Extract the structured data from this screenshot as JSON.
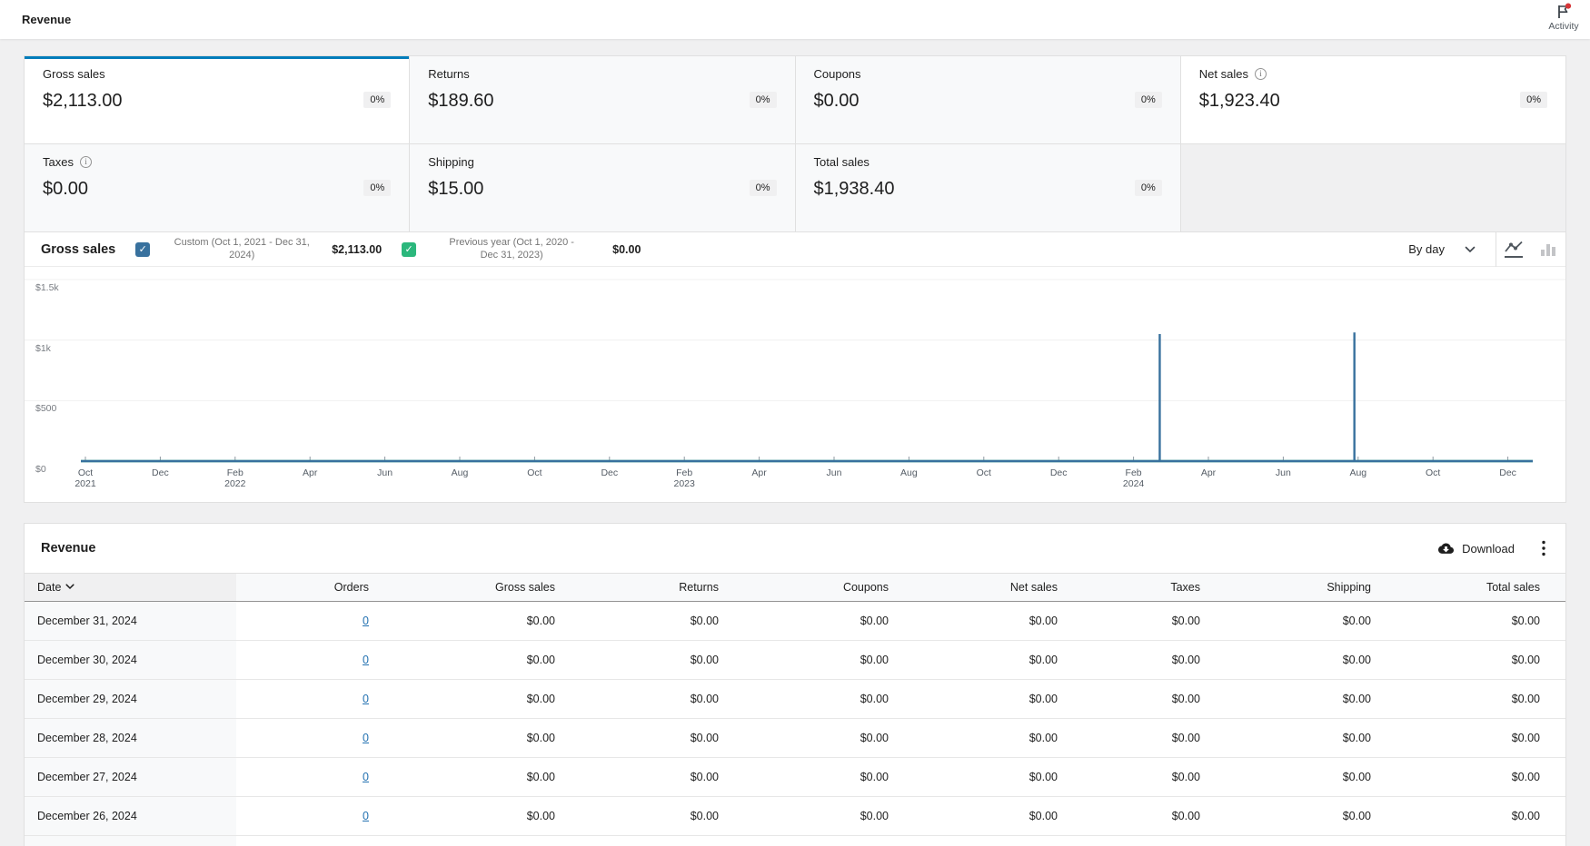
{
  "colors": {
    "accent_blue": "#007cba",
    "link_blue": "#2271b1",
    "series_current": "#38719e",
    "series_previous": "#2bb77c",
    "notification_red": "#d63638"
  },
  "topbar": {
    "title": "Revenue",
    "activity": {
      "label": "Activity",
      "icon": "flag-icon",
      "has_unread_dot": true
    }
  },
  "summary": {
    "tiles": [
      {
        "label": "Gross sales",
        "value": "$2,113.00",
        "delta": "0%",
        "selected": true,
        "info": false
      },
      {
        "label": "Returns",
        "value": "$189.60",
        "delta": "0%",
        "selected": false,
        "info": false
      },
      {
        "label": "Coupons",
        "value": "$0.00",
        "delta": "0%",
        "selected": false,
        "info": false
      },
      {
        "label": "Net sales",
        "value": "$1,923.40",
        "delta": "0%",
        "selected": false,
        "info": true,
        "highlighted": true
      },
      {
        "label": "Taxes",
        "value": "$0.00",
        "delta": "0%",
        "selected": false,
        "info": true
      },
      {
        "label": "Shipping",
        "value": "$15.00",
        "delta": "0%",
        "selected": false,
        "info": false
      },
      {
        "label": "Total sales",
        "value": "$1,938.40",
        "delta": "0%",
        "selected": false,
        "info": false
      }
    ]
  },
  "chart_panel": {
    "title": "Gross sales",
    "legend": [
      {
        "label": "Custom (Oct 1, 2021 - Dec 31, 2024)",
        "total": "$2,113.00",
        "checked": true,
        "checkbox_color": "#38719e"
      },
      {
        "label": "Previous year (Oct 1, 2020 - Dec 31, 2023)",
        "total": "$0.00",
        "checked": true,
        "checkbox_color": "#2bb77c"
      }
    ],
    "interval_selector": {
      "value": "By day"
    },
    "chart_type": {
      "selected": "line",
      "options": [
        "line",
        "bar"
      ]
    }
  },
  "chart_data": {
    "type": "line",
    "title": "Gross sales",
    "interval": "day",
    "x_range": [
      "Oct 1, 2021",
      "Dec 31, 2024"
    ],
    "ylim": [
      0,
      1500
    ],
    "grid": true,
    "legend_position": "top",
    "y_ticks": [
      {
        "label": "$1.5k",
        "value": 1500
      },
      {
        "label": "$1k",
        "value": 1000
      },
      {
        "label": "$500",
        "value": 500
      },
      {
        "label": "$0",
        "value": 0
      }
    ],
    "x_ticks": [
      {
        "m": "Oct",
        "y": "2021"
      },
      {
        "m": "Dec"
      },
      {
        "m": "Feb",
        "y": "2022"
      },
      {
        "m": "Apr"
      },
      {
        "m": "Jun"
      },
      {
        "m": "Aug"
      },
      {
        "m": "Oct"
      },
      {
        "m": "Dec"
      },
      {
        "m": "Feb",
        "y": "2023"
      },
      {
        "m": "Apr"
      },
      {
        "m": "Jun"
      },
      {
        "m": "Aug"
      },
      {
        "m": "Oct"
      },
      {
        "m": "Dec"
      },
      {
        "m": "Feb",
        "y": "2024"
      },
      {
        "m": "Apr"
      },
      {
        "m": "Jun"
      },
      {
        "m": "Aug"
      },
      {
        "m": "Oct"
      },
      {
        "m": "Dec"
      }
    ],
    "series": [
      {
        "name": "Custom (Oct 1, 2021 - Dec 31, 2024)",
        "color": "#38719e",
        "total": "$2,113.00",
        "baseline_value": 0,
        "spikes": [
          {
            "approx_date": "Mar 2024",
            "tick_pos": 14.35,
            "value": 1050
          },
          {
            "approx_date": "Jul 2024",
            "tick_pos": 16.95,
            "value": 1063
          }
        ]
      },
      {
        "name": "Previous year (Oct 1, 2020 - Dec 31, 2023)",
        "color": "#2bb77c",
        "total": "$0.00",
        "baseline_value": 0,
        "spikes": []
      }
    ]
  },
  "table_panel": {
    "title": "Revenue",
    "download_label": "Download",
    "columns": [
      {
        "label": "Date",
        "key": "date",
        "align": "left",
        "sorted": "desc"
      },
      {
        "label": "Orders",
        "key": "orders",
        "align": "right"
      },
      {
        "label": "Gross sales",
        "key": "gross_sales",
        "align": "right"
      },
      {
        "label": "Returns",
        "key": "returns",
        "align": "right"
      },
      {
        "label": "Coupons",
        "key": "coupons",
        "align": "right"
      },
      {
        "label": "Net sales",
        "key": "net_sales",
        "align": "right"
      },
      {
        "label": "Taxes",
        "key": "taxes",
        "align": "right"
      },
      {
        "label": "Shipping",
        "key": "shipping",
        "align": "right"
      },
      {
        "label": "Total sales",
        "key": "total_sales",
        "align": "right"
      }
    ],
    "rows": [
      {
        "date": "December 31, 2024",
        "orders": "0",
        "gross_sales": "$0.00",
        "returns": "$0.00",
        "coupons": "$0.00",
        "net_sales": "$0.00",
        "taxes": "$0.00",
        "shipping": "$0.00",
        "total_sales": "$0.00"
      },
      {
        "date": "December 30, 2024",
        "orders": "0",
        "gross_sales": "$0.00",
        "returns": "$0.00",
        "coupons": "$0.00",
        "net_sales": "$0.00",
        "taxes": "$0.00",
        "shipping": "$0.00",
        "total_sales": "$0.00"
      },
      {
        "date": "December 29, 2024",
        "orders": "0",
        "gross_sales": "$0.00",
        "returns": "$0.00",
        "coupons": "$0.00",
        "net_sales": "$0.00",
        "taxes": "$0.00",
        "shipping": "$0.00",
        "total_sales": "$0.00"
      },
      {
        "date": "December 28, 2024",
        "orders": "0",
        "gross_sales": "$0.00",
        "returns": "$0.00",
        "coupons": "$0.00",
        "net_sales": "$0.00",
        "taxes": "$0.00",
        "shipping": "$0.00",
        "total_sales": "$0.00"
      },
      {
        "date": "December 27, 2024",
        "orders": "0",
        "gross_sales": "$0.00",
        "returns": "$0.00",
        "coupons": "$0.00",
        "net_sales": "$0.00",
        "taxes": "$0.00",
        "shipping": "$0.00",
        "total_sales": "$0.00"
      },
      {
        "date": "December 26, 2024",
        "orders": "0",
        "gross_sales": "$0.00",
        "returns": "$0.00",
        "coupons": "$0.00",
        "net_sales": "$0.00",
        "taxes": "$0.00",
        "shipping": "$0.00",
        "total_sales": "$0.00"
      }
    ]
  }
}
